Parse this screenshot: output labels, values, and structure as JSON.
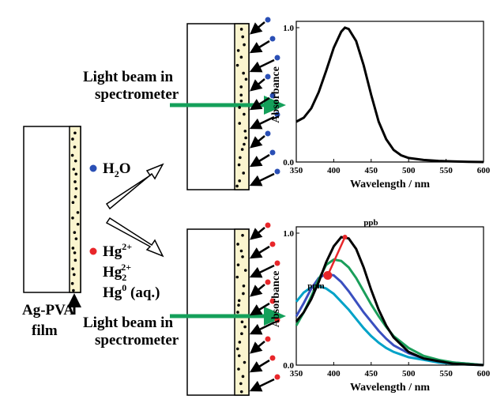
{
  "labels": {
    "film": [
      "Ag-PVA",
      "film"
    ],
    "water": [
      "H",
      "2",
      "O"
    ],
    "mercury": [
      [
        "Hg",
        "2+"
      ],
      [
        "Hg",
        "2",
        "2+"
      ],
      [
        "Hg",
        "0",
        " (aq.)"
      ]
    ],
    "beam_top": [
      "Light beam in",
      "spectrometer"
    ],
    "beam_bottom": [
      "Light beam in",
      "spectrometer"
    ]
  },
  "chart_data": [
    {
      "type": "line",
      "xlabel": "Wavelength / nm",
      "ylabel": "Absorbance",
      "xlim": [
        350,
        600
      ],
      "xticks": [
        350,
        400,
        450,
        500,
        550,
        600
      ],
      "ylim": [
        0,
        1
      ],
      "yticks": [
        {
          "value": 0,
          "label": "0.0"
        },
        {
          "value": 1,
          "label": "1.0"
        }
      ],
      "x": [
        350,
        360,
        370,
        380,
        390,
        400,
        410,
        415,
        420,
        430,
        440,
        450,
        460,
        470,
        480,
        490,
        500,
        520,
        540,
        560,
        580,
        600
      ],
      "series": [
        {
          "color": "#000000",
          "values": [
            0.3,
            0.33,
            0.4,
            0.52,
            0.68,
            0.85,
            0.97,
            1.0,
            0.99,
            0.9,
            0.72,
            0.5,
            0.3,
            0.17,
            0.09,
            0.05,
            0.03,
            0.015,
            0.008,
            0.004,
            0.002,
            0
          ]
        }
      ]
    },
    {
      "type": "line",
      "xlabel": "Wavelength / nm",
      "ylabel": "Absorbance",
      "xlim": [
        350,
        600
      ],
      "xticks": [
        350,
        400,
        450,
        500,
        550,
        600
      ],
      "ylim": [
        0,
        1
      ],
      "yticks": [
        {
          "value": 0,
          "label": "0.0"
        },
        {
          "value": 1,
          "label": "1.0"
        }
      ],
      "annotations": [
        "ppb",
        "ppm"
      ],
      "x": [
        350,
        360,
        370,
        380,
        390,
        400,
        410,
        420,
        430,
        440,
        450,
        460,
        470,
        480,
        500,
        520,
        540,
        560,
        580,
        600
      ],
      "series": [
        {
          "color": "#00a2c8",
          "values": [
            0.48,
            0.55,
            0.59,
            0.6,
            0.58,
            0.54,
            0.48,
            0.42,
            0.35,
            0.28,
            0.22,
            0.17,
            0.13,
            0.1,
            0.06,
            0.04,
            0.02,
            0.01,
            0.005,
            0
          ]
        },
        {
          "color": "#3a4fbf",
          "values": [
            0.37,
            0.47,
            0.58,
            0.66,
            0.69,
            0.68,
            0.63,
            0.56,
            0.48,
            0.4,
            0.33,
            0.26,
            0.2,
            0.15,
            0.09,
            0.05,
            0.03,
            0.02,
            0.01,
            0
          ]
        },
        {
          "color": "#1a9e5a",
          "values": [
            0.3,
            0.4,
            0.52,
            0.65,
            0.76,
            0.8,
            0.79,
            0.74,
            0.66,
            0.56,
            0.46,
            0.37,
            0.29,
            0.22,
            0.13,
            0.07,
            0.04,
            0.02,
            0.01,
            0
          ]
        },
        {
          "color": "#000000",
          "values": [
            0.33,
            0.4,
            0.5,
            0.63,
            0.78,
            0.9,
            0.97,
            0.96,
            0.88,
            0.74,
            0.57,
            0.42,
            0.3,
            0.21,
            0.1,
            0.05,
            0.03,
            0.01,
            0.005,
            0
          ]
        },
        {
          "color": "#e8262a",
          "x": [
            392,
            415
          ],
          "values": [
            0.68,
            0.97
          ]
        }
      ]
    }
  ]
}
